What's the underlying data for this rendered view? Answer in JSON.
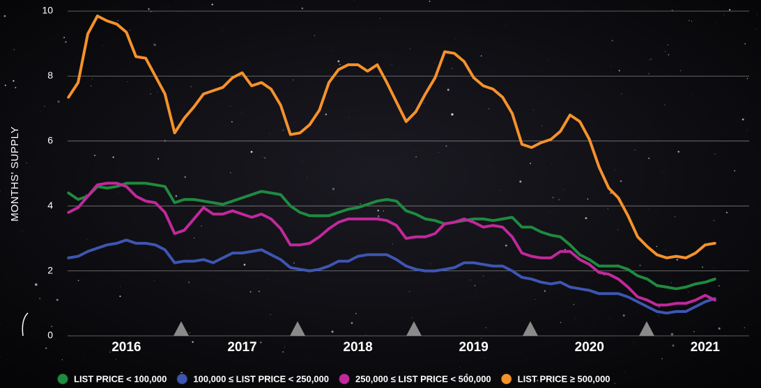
{
  "chart_data": {
    "type": "line",
    "y_label": "MONTHS' SUPPLY",
    "x": [
      2015.5,
      2015.583,
      2015.667,
      2015.75,
      2015.833,
      2015.917,
      2016.0,
      2016.083,
      2016.167,
      2016.25,
      2016.333,
      2016.417,
      2016.5,
      2016.583,
      2016.667,
      2016.75,
      2016.833,
      2016.917,
      2017.0,
      2017.083,
      2017.167,
      2017.25,
      2017.333,
      2017.417,
      2017.5,
      2017.583,
      2017.667,
      2017.75,
      2017.833,
      2017.917,
      2018.0,
      2018.083,
      2018.167,
      2018.25,
      2018.333,
      2018.417,
      2018.5,
      2018.583,
      2018.667,
      2018.75,
      2018.833,
      2018.917,
      2019.0,
      2019.083,
      2019.167,
      2019.25,
      2019.333,
      2019.417,
      2019.5,
      2019.583,
      2019.667,
      2019.75,
      2019.833,
      2019.917,
      2020.0,
      2020.083,
      2020.167,
      2020.25,
      2020.333,
      2020.417,
      2020.5,
      2020.583,
      2020.667,
      2020.75,
      2020.833,
      2020.917,
      2021.0,
      2021.083
    ],
    "xlim": [
      2015.45,
      2021.38
    ],
    "xticks": [
      2016,
      2017,
      2018,
      2019,
      2020,
      2021
    ],
    "ylim": [
      0,
      10
    ],
    "yticks": [
      0,
      2,
      4,
      6,
      8,
      10
    ],
    "grid": true,
    "legend": "bottom",
    "series": [
      {
        "name": "LIST PRICE < 100,000",
        "color": "#1f8a40",
        "values": [
          4.4,
          4.2,
          4.3,
          4.6,
          4.55,
          4.6,
          4.7,
          4.7,
          4.7,
          4.65,
          4.6,
          4.1,
          4.2,
          4.2,
          4.15,
          4.1,
          4.05,
          4.15,
          4.25,
          4.35,
          4.45,
          4.4,
          4.35,
          4.0,
          3.8,
          3.7,
          3.7,
          3.7,
          3.8,
          3.9,
          3.95,
          4.05,
          4.15,
          4.2,
          4.15,
          3.85,
          3.75,
          3.6,
          3.55,
          3.45,
          3.5,
          3.55,
          3.6,
          3.6,
          3.55,
          3.6,
          3.65,
          3.35,
          3.35,
          3.2,
          3.1,
          3.05,
          2.8,
          2.5,
          2.35,
          2.15,
          2.15,
          2.15,
          2.05,
          1.85,
          1.75,
          1.55,
          1.5,
          1.45,
          1.5,
          1.6,
          1.65,
          1.75
        ]
      },
      {
        "name": "100,000 ≤ LIST PRICE < 250,000",
        "color": "#3d56b2",
        "values": [
          2.4,
          2.45,
          2.6,
          2.7,
          2.8,
          2.85,
          2.95,
          2.85,
          2.85,
          2.8,
          2.65,
          2.25,
          2.3,
          2.3,
          2.35,
          2.25,
          2.4,
          2.55,
          2.55,
          2.6,
          2.65,
          2.5,
          2.35,
          2.1,
          2.05,
          2.0,
          2.05,
          2.15,
          2.3,
          2.3,
          2.45,
          2.5,
          2.5,
          2.5,
          2.35,
          2.15,
          2.05,
          2.0,
          2.0,
          2.05,
          2.1,
          2.25,
          2.25,
          2.2,
          2.15,
          2.15,
          2.0,
          1.8,
          1.75,
          1.65,
          1.6,
          1.65,
          1.5,
          1.45,
          1.4,
          1.3,
          1.3,
          1.3,
          1.2,
          1.05,
          0.9,
          0.75,
          0.7,
          0.75,
          0.75,
          0.9,
          1.05,
          1.15
        ]
      },
      {
        "name": "250,000 ≤ LIST PRICE < 500,000",
        "color": "#c2289c",
        "values": [
          3.8,
          3.95,
          4.3,
          4.65,
          4.7,
          4.7,
          4.6,
          4.3,
          4.15,
          4.1,
          3.8,
          3.15,
          3.25,
          3.6,
          3.95,
          3.75,
          3.75,
          3.85,
          3.75,
          3.65,
          3.75,
          3.6,
          3.3,
          2.8,
          2.8,
          2.85,
          3.05,
          3.3,
          3.5,
          3.6,
          3.6,
          3.6,
          3.6,
          3.55,
          3.4,
          3.0,
          3.05,
          3.05,
          3.15,
          3.45,
          3.5,
          3.6,
          3.5,
          3.35,
          3.4,
          3.35,
          3.05,
          2.55,
          2.45,
          2.4,
          2.4,
          2.6,
          2.6,
          2.35,
          2.2,
          1.95,
          1.9,
          1.75,
          1.5,
          1.2,
          1.1,
          0.95,
          0.95,
          1.0,
          1.0,
          1.1,
          1.25,
          1.1
        ]
      },
      {
        "name": "LIST PRICE ≥ 500,000",
        "color": "#f5922b",
        "values": [
          7.35,
          7.8,
          9.3,
          9.85,
          9.7,
          9.6,
          9.35,
          8.6,
          8.55,
          8.0,
          7.45,
          6.25,
          6.7,
          7.05,
          7.45,
          7.55,
          7.65,
          7.95,
          8.1,
          7.7,
          7.8,
          7.6,
          7.1,
          6.2,
          6.25,
          6.5,
          6.95,
          7.8,
          8.2,
          8.35,
          8.35,
          8.15,
          8.35,
          7.8,
          7.2,
          6.6,
          6.9,
          7.45,
          7.95,
          8.75,
          8.7,
          8.45,
          7.95,
          7.7,
          7.6,
          7.35,
          6.85,
          5.9,
          5.8,
          5.95,
          6.05,
          6.3,
          6.8,
          6.6,
          6.05,
          5.2,
          4.55,
          4.25,
          3.7,
          3.05,
          2.75,
          2.5,
          2.4,
          2.45,
          2.4,
          2.55,
          2.8,
          2.85
        ]
      }
    ]
  }
}
